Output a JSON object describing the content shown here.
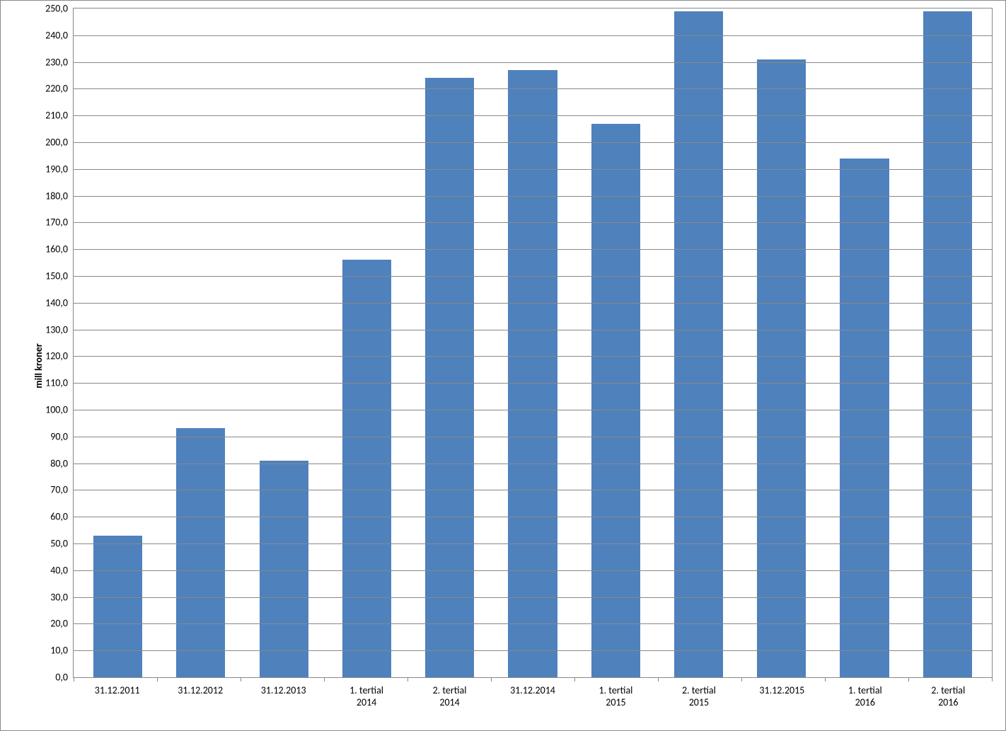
{
  "chart": {
    "type": "bar",
    "ylabel": "mill kroner",
    "ylabel_fontsize": 14,
    "ylabel_fontweight": "bold",
    "xlabel_fontsize": 14,
    "ytick_fontsize": 14,
    "ylim": [
      0,
      250
    ],
    "ytick_step": 10,
    "ytick_decimal_sep": ",",
    "ytick_decimals": 1,
    "bar_color": "#4f81bd",
    "bar_width": 0.59,
    "background_color": "#ffffff",
    "grid_color": "#888888",
    "border_color": "#888888",
    "font_family": "Calibri, Arial, sans-serif",
    "text_color": "#000000",
    "categories": [
      "31.12.2011",
      "31.12.2012",
      "31.12.2013",
      "1. tertial 2014",
      "2. tertial 2014",
      "31.12.2014",
      "1. tertial 2015",
      "2. tertial 2015",
      "31.12.2015",
      "1. tertial 2016",
      "2. tertial 2016"
    ],
    "values": [
      53,
      93,
      81,
      156,
      224,
      227,
      207,
      249,
      231,
      194,
      249
    ]
  }
}
